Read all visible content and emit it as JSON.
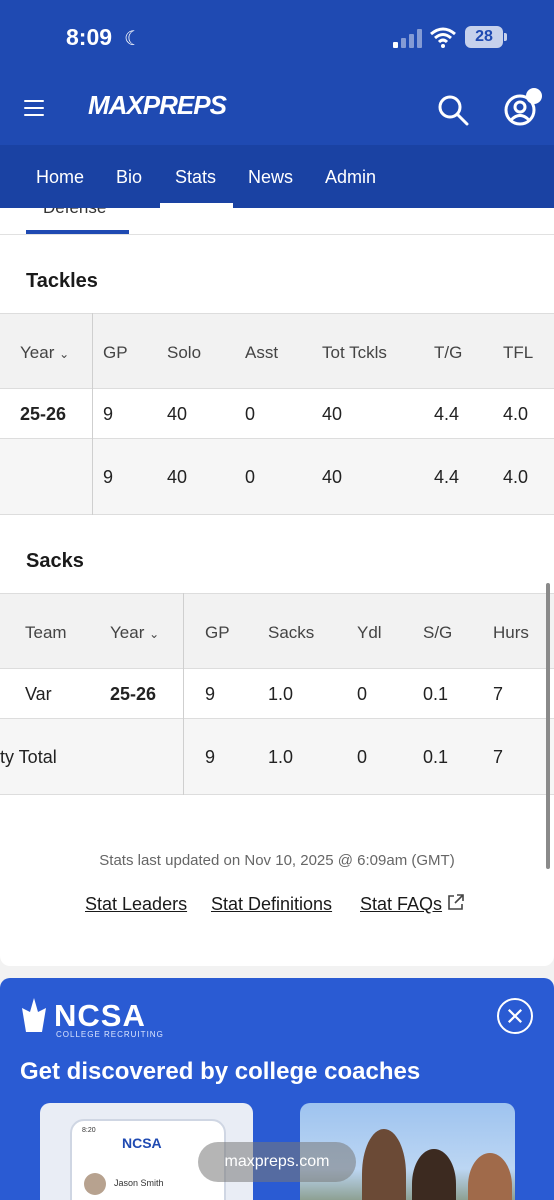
{
  "status_bar": {
    "time": "8:09",
    "battery": "28"
  },
  "header": {
    "logo": "MAXPREPS"
  },
  "nav": {
    "tabs": [
      "Home",
      "Bio",
      "Stats",
      "News",
      "Admin"
    ],
    "active": "Stats"
  },
  "subtab": {
    "label": "Defense"
  },
  "tackles": {
    "title": "Tackles",
    "headers": [
      "Year",
      "GP",
      "Solo",
      "Asst",
      "Tot Tckls",
      "T/G",
      "TFL"
    ],
    "rows": [
      [
        "25-26",
        "9",
        "40",
        "0",
        "40",
        "4.4",
        "4.0"
      ],
      [
        "",
        "9",
        "40",
        "0",
        "40",
        "4.4",
        "4.0"
      ]
    ]
  },
  "sacks": {
    "title": "Sacks",
    "headers": [
      "Team",
      "Year",
      "GP",
      "Sacks",
      "Ydl",
      "S/G",
      "Hurs"
    ],
    "rows": [
      [
        "Var",
        "25-26",
        "9",
        "1.0",
        "0",
        "0.1",
        "7"
      ],
      [
        "ty Total",
        "",
        "9",
        "1.0",
        "0",
        "0.1",
        "7"
      ]
    ]
  },
  "footer": {
    "updated": "Stats last updated on Nov 10, 2025 @ 6:09am (GMT)",
    "links": [
      "Stat Leaders",
      "Stat Definitions",
      "Stat FAQs"
    ]
  },
  "ncsa": {
    "logo": "NCSA",
    "logo_sub": "COLLEGE RECRUITING",
    "headline": "Get discovered by college coaches",
    "mini_logo": "NCSA",
    "mini_time": "8:20",
    "mini_name": "Jason Smith"
  },
  "browser": {
    "url": "maxpreps.com"
  }
}
